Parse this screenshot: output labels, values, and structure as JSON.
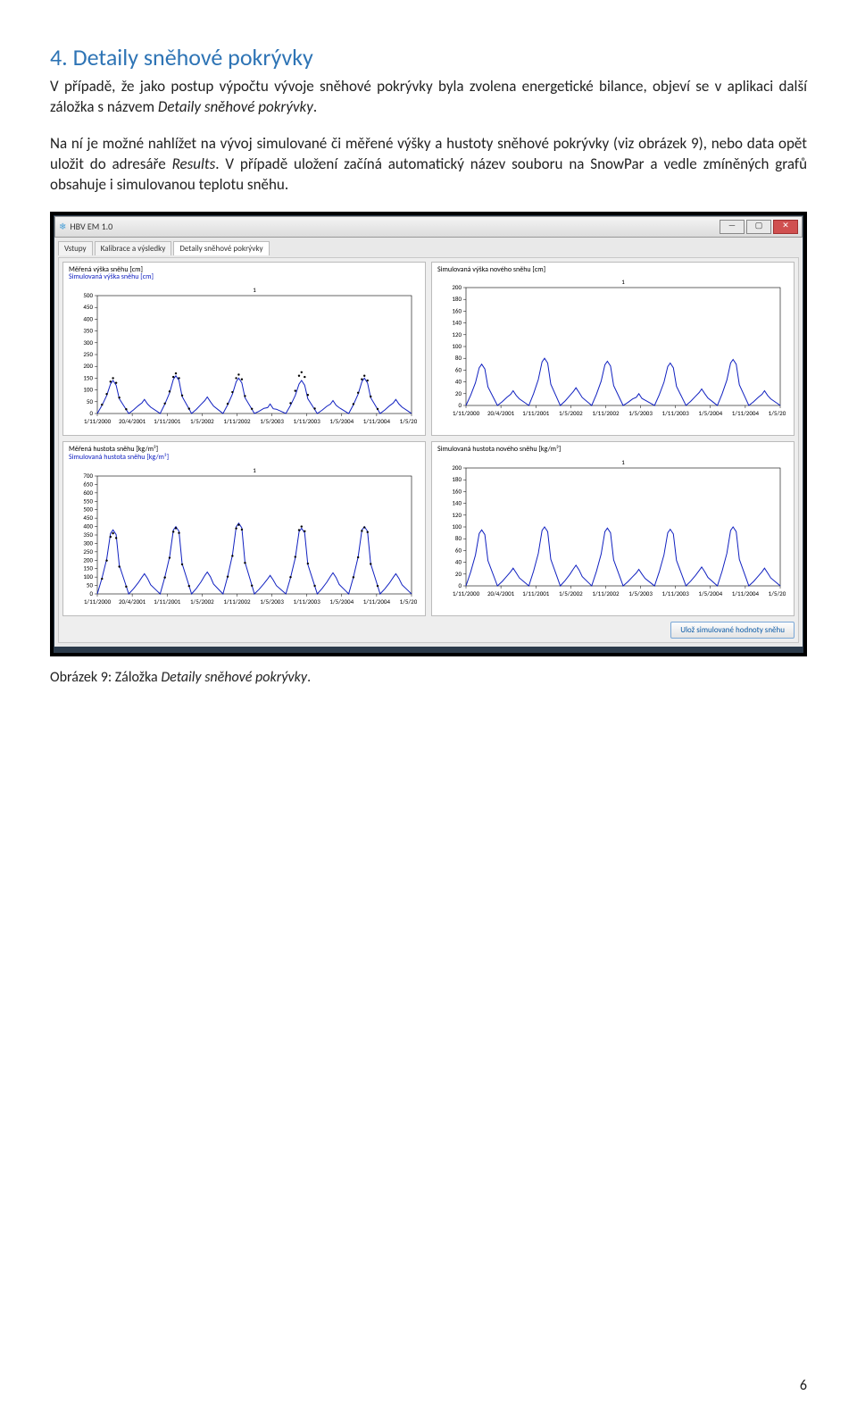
{
  "section_number": "4.",
  "section_title": "Detaily sněhové pokrývky",
  "para1_a": "V případě, že jako postup výpočtu vývoje sněhové pokrývky byla zvolena energetické bilance, objeví se v aplikaci další záložka s názvem ",
  "para1_b": "Detaily sněhové pokrývky",
  "para1_c": ".",
  "para2_a": "Na ní je možné nahlížet na vývoj simulované či měřené výšky a hustoty sněhové pokrývky (viz obrázek 9), nebo data opět uložit do adresáře ",
  "para2_b": "Results",
  "para2_c": ". V případě uložení začíná automatický název souboru na SnowPar a vedle zmíněných grafů obsahuje i simulovanou teplotu sněhu.",
  "app_title": "HBV EM 1.0",
  "tabs": [
    "Vstupy",
    "Kalibrace a výsledky",
    "Detaily sněhové pokrývky"
  ],
  "active_tab": 2,
  "save_button": "Ulož simulované hodnoty sněhu",
  "xticks": [
    "1/11/2000",
    "20/4/2001",
    "1/11/2001",
    "1/5/2002",
    "1/11/2002",
    "1/5/2003",
    "1/11/2003",
    "1/5/2004",
    "1/11/2004",
    "1/5/2005"
  ],
  "charts": [
    {
      "titles": [
        "Měřená výška sněhu [cm]",
        "Simulovaná výška sněhu [cm]"
      ],
      "title_colors": [
        "#000",
        "#1020c0"
      ],
      "ymax": 500,
      "ystep": 50,
      "top_label": "1",
      "series": [
        {
          "color": "#1020c0",
          "peaks": [
            140,
            60,
            160,
            70,
            150,
            40,
            140,
            55,
            150,
            60
          ]
        },
        {
          "color": "#000",
          "dots": true,
          "peaks": [
            150,
            0,
            170,
            0,
            165,
            0,
            175,
            0,
            160,
            0
          ]
        }
      ]
    },
    {
      "titles": [
        "Simulovaná výška nového sněhu [cm]"
      ],
      "title_colors": [
        "#000"
      ],
      "ymax": 200,
      "ystep": 20,
      "top_label": "1",
      "series": [
        {
          "color": "#1020c0",
          "peaks": [
            70,
            25,
            80,
            30,
            75,
            20,
            72,
            28,
            78,
            25
          ]
        }
      ]
    },
    {
      "titles": [
        "Měřená hustota sněhu [kg/m³]",
        "Simulovaná hustota sněhu [kg/m³]"
      ],
      "title_colors": [
        "#000",
        "#1020c0"
      ],
      "ymax": 700,
      "ystep": 50,
      "top_label": "1",
      "series": [
        {
          "color": "#1020c0",
          "peaks": [
            380,
            120,
            400,
            130,
            420,
            110,
            390,
            125,
            400,
            120
          ]
        },
        {
          "color": "#000",
          "dots": true,
          "peaks": [
            360,
            0,
            390,
            0,
            410,
            0,
            400,
            0,
            395,
            0
          ]
        }
      ]
    },
    {
      "titles": [
        "Simulovaná hustota nového sněhu [kg/m³]"
      ],
      "title_colors": [
        "#000"
      ],
      "ymax": 200,
      "ystep": 20,
      "top_label": "1",
      "series": [
        {
          "color": "#1020c0",
          "peaks": [
            95,
            30,
            100,
            35,
            98,
            28,
            96,
            32,
            100,
            30
          ]
        }
      ]
    }
  ],
  "caption_a": "Obrázek 9: Záložka ",
  "caption_b": "Detaily sněhové pokrývky",
  "caption_c": ".",
  "page_number": "6"
}
